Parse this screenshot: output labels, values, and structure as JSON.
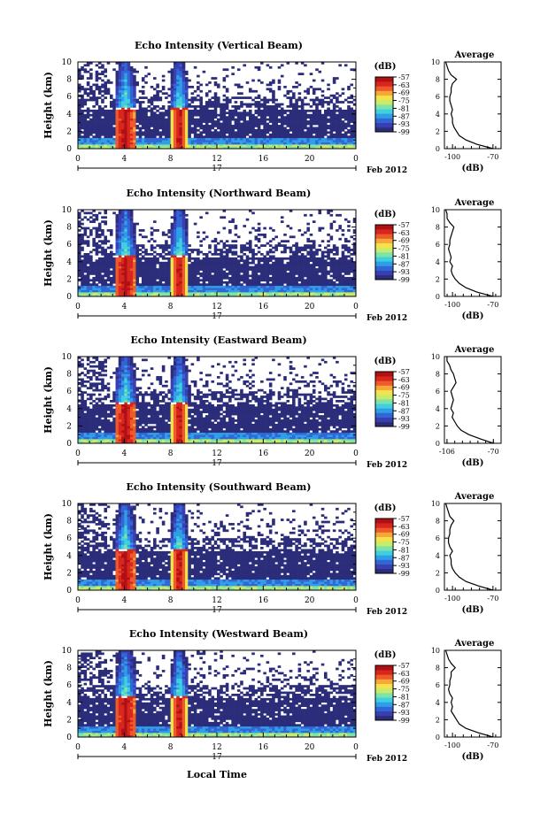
{
  "figure": {
    "xlabel_bottom": "Local Time",
    "colorbar_unit": "(dB)",
    "average_title": "Average",
    "average_xlabel": "(dB)"
  },
  "chart_data": [
    {
      "type": "heatmap",
      "title": "Echo Intensity (Vertical Beam)",
      "ylabel": "Height (km)",
      "x_ticks": [
        "0",
        "4",
        "8",
        "12",
        "16",
        "20",
        "0"
      ],
      "x_date_day": "17",
      "x_date_month": "Feb 2012",
      "y_ticks": [
        "0",
        "2",
        "4",
        "6",
        "8",
        "10"
      ],
      "xlim": [
        0,
        24
      ],
      "ylim": [
        0,
        10
      ],
      "colorbar_ticks": [
        "-57",
        "-63",
        "-69",
        "-75",
        "-81",
        "-87",
        "-93",
        "-99"
      ],
      "colorbar_range": [
        -99,
        -57
      ],
      "average": {
        "x_ticks": [
          "-100",
          "-70"
        ],
        "xlim": [
          -106,
          -64
        ],
        "height": [
          0,
          0.5,
          1,
          1.5,
          2,
          2.5,
          3,
          3.5,
          4,
          4.5,
          5,
          5.5,
          6,
          6.5,
          7,
          7.5,
          8,
          8.5,
          9,
          9.5,
          10
        ],
        "db": [
          -70,
          -82,
          -90,
          -95,
          -97,
          -99,
          -100,
          -100,
          -101,
          -100,
          -101,
          -102,
          -102,
          -101,
          -101,
          -100,
          -97,
          -101,
          -103,
          -104,
          -105
        ]
      },
      "storm_cells": [
        [
          3.2,
          5.0
        ],
        [
          8.0,
          9.5
        ]
      ]
    },
    {
      "type": "heatmap",
      "title": "Echo Intensity (Northward Beam)",
      "ylabel": "Height (km)",
      "x_ticks": [
        "0",
        "4",
        "8",
        "12",
        "16",
        "20",
        "0"
      ],
      "x_date_day": "17",
      "x_date_month": "Feb 2012",
      "y_ticks": [
        "0",
        "2",
        "4",
        "6",
        "8",
        "10"
      ],
      "xlim": [
        0,
        24
      ],
      "ylim": [
        0,
        10
      ],
      "colorbar_ticks": [
        "-57",
        "-63",
        "-69",
        "-75",
        "-81",
        "-87",
        "-93",
        "-99"
      ],
      "colorbar_range": [
        -99,
        -57
      ],
      "average": {
        "x_ticks": [
          "-100",
          "-70"
        ],
        "xlim": [
          -106,
          -64
        ],
        "height": [
          0,
          0.5,
          1,
          1.5,
          2,
          2.5,
          3,
          3.5,
          4,
          4.5,
          5,
          5.5,
          6,
          6.5,
          7,
          7.5,
          8,
          8.5,
          9,
          9.5,
          10
        ],
        "db": [
          -70,
          -82,
          -90,
          -95,
          -98,
          -100,
          -101,
          -100,
          -102,
          -101,
          -102,
          -103,
          -102,
          -102,
          -101,
          -100,
          -99,
          -102,
          -104,
          -104,
          -105
        ]
      },
      "storm_cells": [
        [
          3.2,
          5.0
        ],
        [
          8.0,
          9.5
        ]
      ]
    },
    {
      "type": "heatmap",
      "title": "Echo Intensity (Eastward Beam)",
      "ylabel": "Height (km)",
      "x_ticks": [
        "0",
        "4",
        "8",
        "12",
        "16",
        "20",
        "0"
      ],
      "x_date_day": "17",
      "x_date_month": "Feb 2012",
      "y_ticks": [
        "0",
        "2",
        "4",
        "6",
        "8",
        "10"
      ],
      "xlim": [
        0,
        24
      ],
      "ylim": [
        0,
        10
      ],
      "colorbar_ticks": [
        "-57",
        "-63",
        "-69",
        "-75",
        "-81",
        "-87",
        "-93",
        "-99"
      ],
      "colorbar_range": [
        -99,
        -57
      ],
      "average": {
        "x_ticks": [
          "-106",
          "-70"
        ],
        "xlim": [
          -108,
          -64
        ],
        "height": [
          0,
          0.5,
          1,
          1.5,
          2,
          2.5,
          3,
          3.5,
          4,
          4.5,
          5,
          5.5,
          6,
          6.5,
          7,
          7.5,
          8,
          8.5,
          9,
          9.5,
          10
        ],
        "db": [
          -70,
          -80,
          -89,
          -95,
          -98,
          -100,
          -102,
          -101,
          -103,
          -102,
          -101,
          -102,
          -103,
          -101,
          -99,
          -100,
          -101,
          -103,
          -104,
          -106,
          -106
        ]
      },
      "storm_cells": [
        [
          3.2,
          5.0
        ],
        [
          8.0,
          9.5
        ]
      ]
    },
    {
      "type": "heatmap",
      "title": "Echo Intensity (Southward Beam)",
      "ylabel": "Height (km)",
      "x_ticks": [
        "0",
        "4",
        "8",
        "12",
        "16",
        "20",
        "0"
      ],
      "x_date_day": "17",
      "x_date_month": "Feb 2012",
      "y_ticks": [
        "0",
        "2",
        "4",
        "6",
        "8",
        "10"
      ],
      "xlim": [
        0,
        24
      ],
      "ylim": [
        0,
        10
      ],
      "colorbar_ticks": [
        "-57",
        "-63",
        "-69",
        "-75",
        "-81",
        "-87",
        "-93",
        "-99"
      ],
      "colorbar_range": [
        -99,
        -57
      ],
      "average": {
        "x_ticks": [
          "-100",
          "-70"
        ],
        "xlim": [
          -106,
          -64
        ],
        "height": [
          0,
          0.5,
          1,
          1.5,
          2,
          2.5,
          3,
          3.5,
          4,
          4.5,
          5,
          5.5,
          6,
          6.5,
          7,
          7.5,
          8,
          8.5,
          9,
          9.5,
          10
        ],
        "db": [
          -70,
          -81,
          -90,
          -95,
          -98,
          -100,
          -101,
          -101,
          -102,
          -100,
          -102,
          -103,
          -103,
          -102,
          -102,
          -101,
          -99,
          -102,
          -103,
          -104,
          -105
        ]
      },
      "storm_cells": [
        [
          3.2,
          5.0
        ],
        [
          8.0,
          9.5
        ]
      ]
    },
    {
      "type": "heatmap",
      "title": "Echo Intensity (Westward Beam)",
      "ylabel": "Height (km)",
      "x_ticks": [
        "0",
        "4",
        "8",
        "12",
        "16",
        "20",
        "0"
      ],
      "x_date_day": "17",
      "x_date_month": "Feb 2012",
      "y_ticks": [
        "0",
        "2",
        "4",
        "6",
        "8",
        "10"
      ],
      "xlim": [
        0,
        24
      ],
      "ylim": [
        0,
        10
      ],
      "colorbar_ticks": [
        "-57",
        "-63",
        "-69",
        "-75",
        "-81",
        "-87",
        "-93",
        "-99"
      ],
      "colorbar_range": [
        -99,
        -57
      ],
      "average": {
        "x_ticks": [
          "-100",
          "-70"
        ],
        "xlim": [
          -106,
          -64
        ],
        "height": [
          0,
          0.5,
          1,
          1.5,
          2,
          2.5,
          3,
          3.5,
          4,
          4.5,
          5,
          5.5,
          6,
          6.5,
          7,
          7.5,
          8,
          8.5,
          9,
          9.5,
          10
        ],
        "db": [
          -70,
          -81,
          -90,
          -95,
          -97,
          -99,
          -101,
          -100,
          -101,
          -100,
          -102,
          -103,
          -102,
          -102,
          -101,
          -101,
          -98,
          -101,
          -103,
          -104,
          -105
        ]
      },
      "storm_cells": [
        [
          3.2,
          5.0
        ],
        [
          8.0,
          9.5
        ]
      ]
    }
  ],
  "colormap": [
    "#2b2c7a",
    "#3a3fb0",
    "#3066d6",
    "#2f9ee6",
    "#3fd0e0",
    "#7fe3a8",
    "#c8ec6a",
    "#f5e14a",
    "#f7a638",
    "#ee5a2a",
    "#d7261e",
    "#b00f14"
  ]
}
